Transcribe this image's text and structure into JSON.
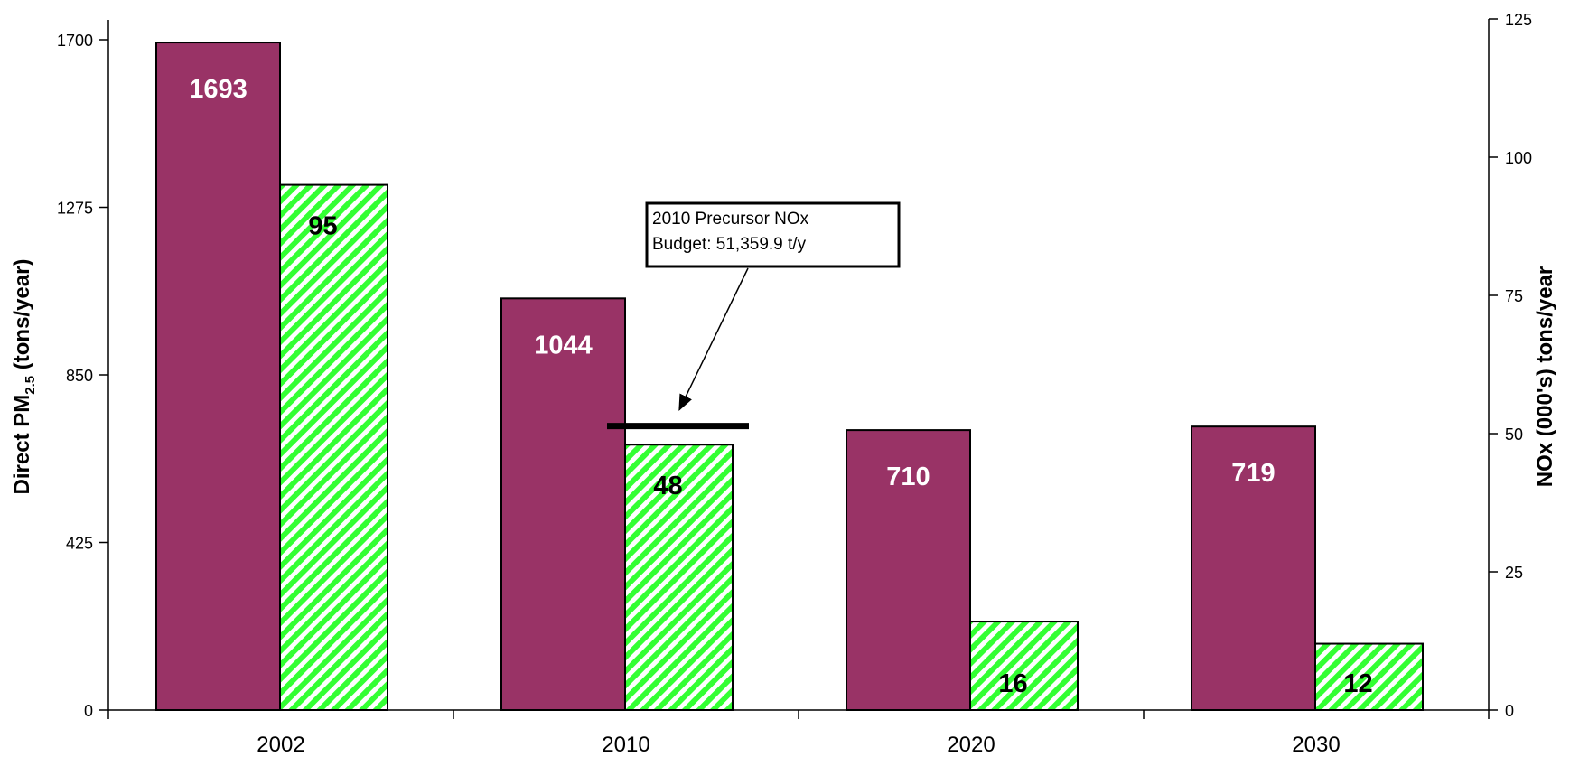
{
  "chart_data": {
    "type": "bar",
    "categories": [
      "2002",
      "2010",
      "2020",
      "2030"
    ],
    "series": [
      {
        "axis": "left",
        "values": [
          1693,
          1044,
          710,
          719
        ],
        "data_labels": [
          "1693",
          "1044",
          "710",
          "719"
        ],
        "color": "#993366"
      },
      {
        "axis": "right",
        "values": [
          95,
          48,
          16,
          12
        ],
        "data_labels": [
          "95",
          "48",
          "16",
          "12"
        ],
        "color": "#33ff33",
        "pattern": "diagonal-stripes"
      }
    ],
    "ylabel_left": {
      "main": "Direct PM",
      "sub": "2.5",
      "rest": " (tons/year)"
    },
    "ylabel_right": "NOx (000's) tons/year",
    "yticks_left": [
      "0",
      "425",
      "850",
      "1275",
      "1700"
    ],
    "yticks_right": [
      "0",
      "25",
      "50",
      "75",
      "100",
      "125"
    ],
    "ylim_left": [
      0,
      1700
    ],
    "ylim_right": [
      0,
      125
    ],
    "annotation": {
      "lines": [
        "2010 Precursor NOx",
        "Budget: 51,359.9 t/y"
      ],
      "budget_value": 51.3599,
      "category": "2010"
    },
    "grid": false,
    "legend": "none"
  }
}
